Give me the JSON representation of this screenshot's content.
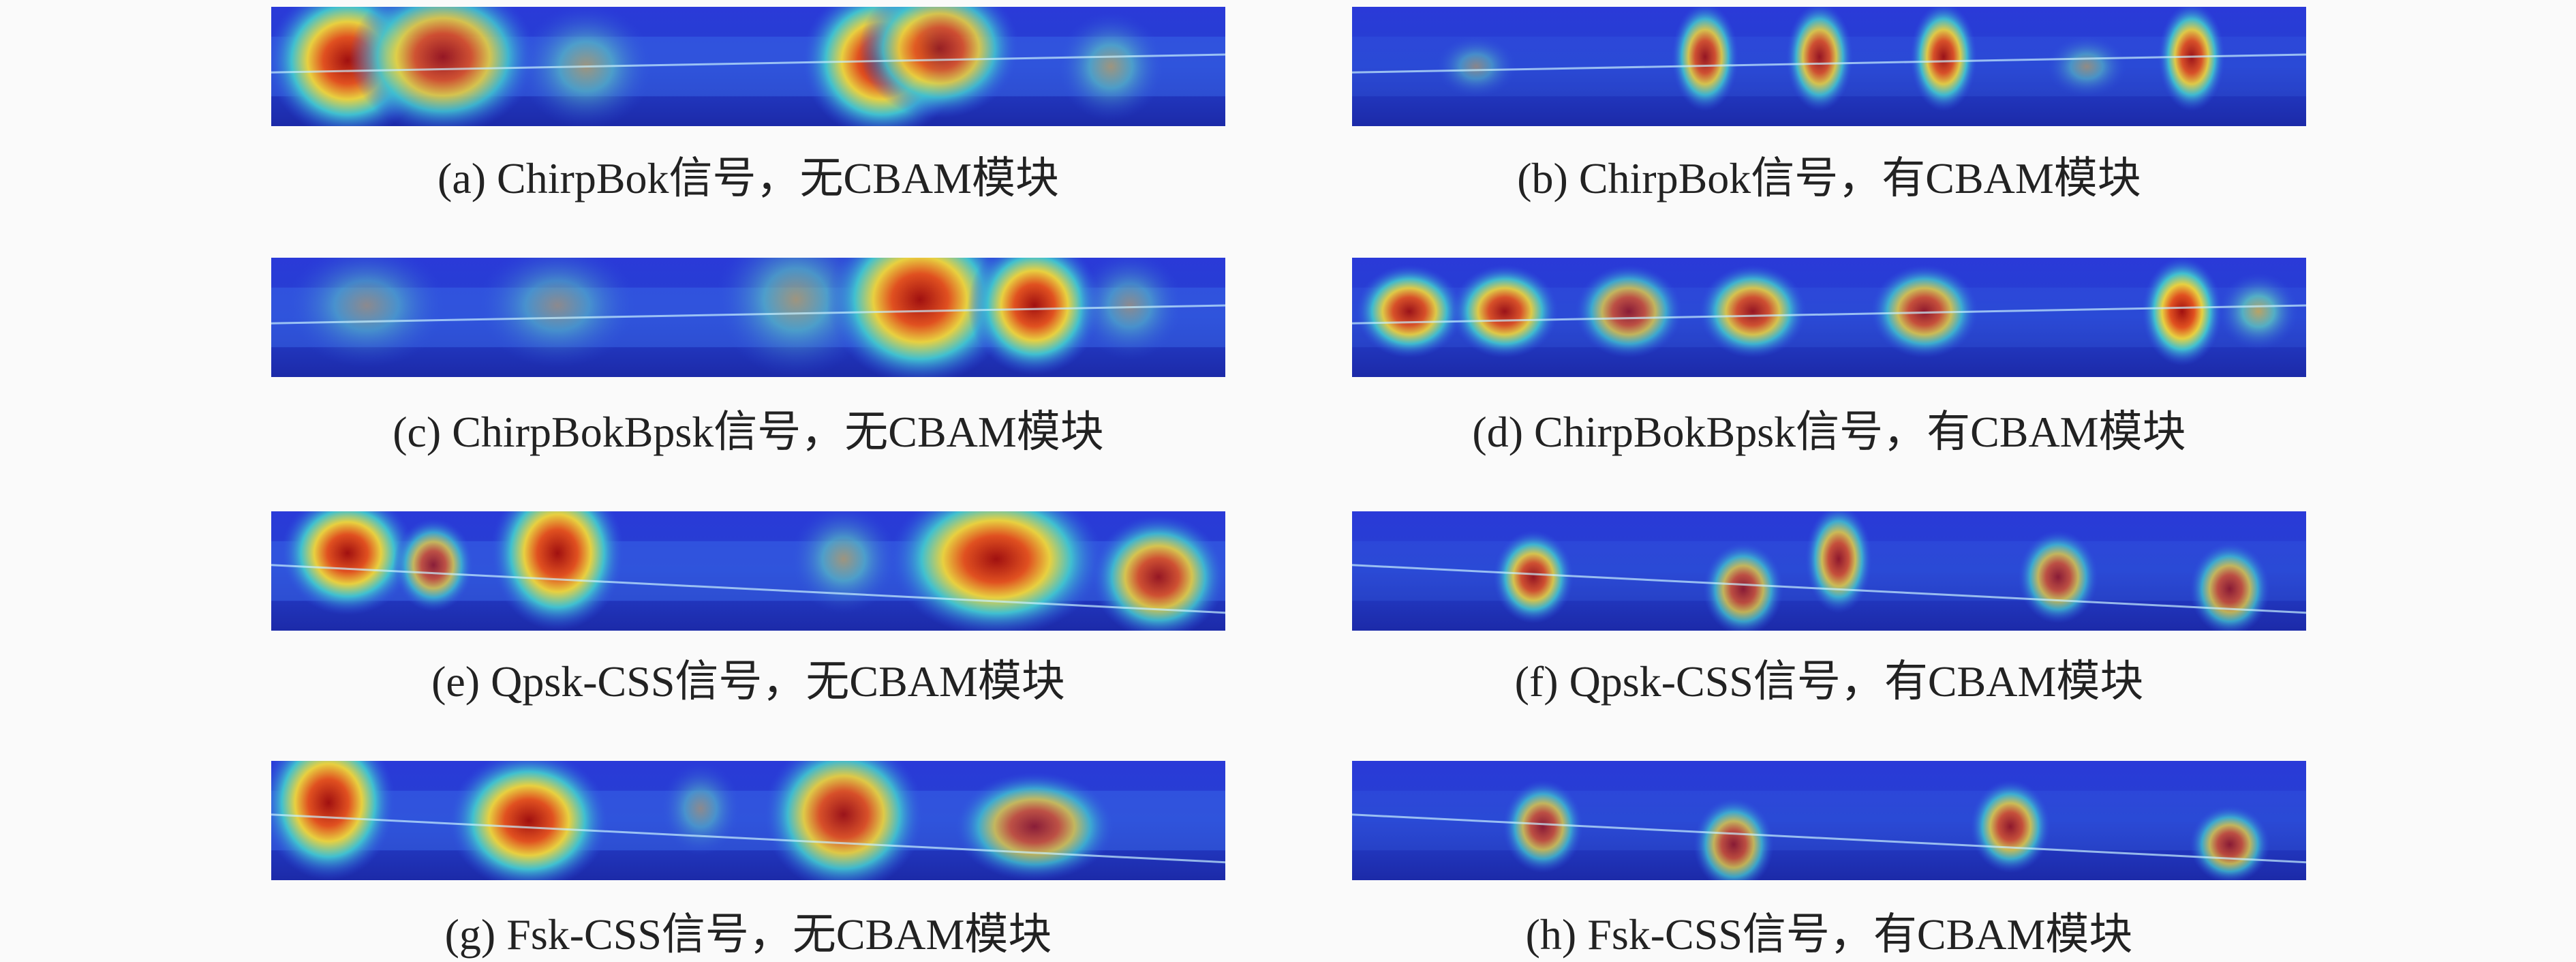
{
  "figure": {
    "panels": [
      {
        "caption": "(a) ChirpBok信号，无CBAM模块"
      },
      {
        "caption": "(b) ChirpBok信号，有CBAM模块"
      },
      {
        "caption": "(c) ChirpBokBpsk信号，无CBAM模块"
      },
      {
        "caption": "(d) ChirpBokBpsk信号，有CBAM模块"
      },
      {
        "caption": "(e) Qpsk-CSS信号，无CBAM模块"
      },
      {
        "caption": "(f) Qpsk-CSS信号，有CBAM模块"
      },
      {
        "caption": "(g) Fsk-CSS信号，无CBAM模块"
      },
      {
        "caption": "(h) Fsk-CSS信号，有CBAM模块"
      }
    ]
  }
}
